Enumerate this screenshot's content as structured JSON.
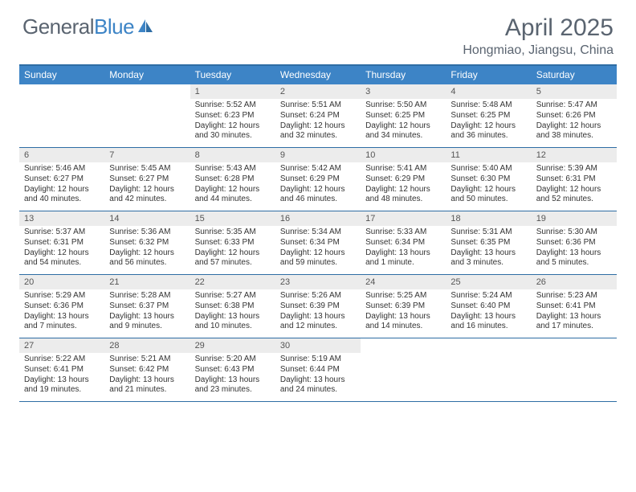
{
  "logo": {
    "general": "General",
    "blue": "Blue"
  },
  "title": "April 2025",
  "location": "Hongmiao, Jiangsu, China",
  "colors": {
    "header_bg": "#3d84c6",
    "border": "#2e6da4",
    "daynum_bg": "#ececec",
    "text": "#5a6470"
  },
  "dayHeaders": [
    "Sunday",
    "Monday",
    "Tuesday",
    "Wednesday",
    "Thursday",
    "Friday",
    "Saturday"
  ],
  "weeks": [
    [
      {
        "n": "",
        "sr": "",
        "ss": "",
        "dl": ""
      },
      {
        "n": "",
        "sr": "",
        "ss": "",
        "dl": ""
      },
      {
        "n": "1",
        "sr": "5:52 AM",
        "ss": "6:23 PM",
        "dl": "12 hours and 30 minutes."
      },
      {
        "n": "2",
        "sr": "5:51 AM",
        "ss": "6:24 PM",
        "dl": "12 hours and 32 minutes."
      },
      {
        "n": "3",
        "sr": "5:50 AM",
        "ss": "6:25 PM",
        "dl": "12 hours and 34 minutes."
      },
      {
        "n": "4",
        "sr": "5:48 AM",
        "ss": "6:25 PM",
        "dl": "12 hours and 36 minutes."
      },
      {
        "n": "5",
        "sr": "5:47 AM",
        "ss": "6:26 PM",
        "dl": "12 hours and 38 minutes."
      }
    ],
    [
      {
        "n": "6",
        "sr": "5:46 AM",
        "ss": "6:27 PM",
        "dl": "12 hours and 40 minutes."
      },
      {
        "n": "7",
        "sr": "5:45 AM",
        "ss": "6:27 PM",
        "dl": "12 hours and 42 minutes."
      },
      {
        "n": "8",
        "sr": "5:43 AM",
        "ss": "6:28 PM",
        "dl": "12 hours and 44 minutes."
      },
      {
        "n": "9",
        "sr": "5:42 AM",
        "ss": "6:29 PM",
        "dl": "12 hours and 46 minutes."
      },
      {
        "n": "10",
        "sr": "5:41 AM",
        "ss": "6:29 PM",
        "dl": "12 hours and 48 minutes."
      },
      {
        "n": "11",
        "sr": "5:40 AM",
        "ss": "6:30 PM",
        "dl": "12 hours and 50 minutes."
      },
      {
        "n": "12",
        "sr": "5:39 AM",
        "ss": "6:31 PM",
        "dl": "12 hours and 52 minutes."
      }
    ],
    [
      {
        "n": "13",
        "sr": "5:37 AM",
        "ss": "6:31 PM",
        "dl": "12 hours and 54 minutes."
      },
      {
        "n": "14",
        "sr": "5:36 AM",
        "ss": "6:32 PM",
        "dl": "12 hours and 56 minutes."
      },
      {
        "n": "15",
        "sr": "5:35 AM",
        "ss": "6:33 PM",
        "dl": "12 hours and 57 minutes."
      },
      {
        "n": "16",
        "sr": "5:34 AM",
        "ss": "6:34 PM",
        "dl": "12 hours and 59 minutes."
      },
      {
        "n": "17",
        "sr": "5:33 AM",
        "ss": "6:34 PM",
        "dl": "13 hours and 1 minute."
      },
      {
        "n": "18",
        "sr": "5:31 AM",
        "ss": "6:35 PM",
        "dl": "13 hours and 3 minutes."
      },
      {
        "n": "19",
        "sr": "5:30 AM",
        "ss": "6:36 PM",
        "dl": "13 hours and 5 minutes."
      }
    ],
    [
      {
        "n": "20",
        "sr": "5:29 AM",
        "ss": "6:36 PM",
        "dl": "13 hours and 7 minutes."
      },
      {
        "n": "21",
        "sr": "5:28 AM",
        "ss": "6:37 PM",
        "dl": "13 hours and 9 minutes."
      },
      {
        "n": "22",
        "sr": "5:27 AM",
        "ss": "6:38 PM",
        "dl": "13 hours and 10 minutes."
      },
      {
        "n": "23",
        "sr": "5:26 AM",
        "ss": "6:39 PM",
        "dl": "13 hours and 12 minutes."
      },
      {
        "n": "24",
        "sr": "5:25 AM",
        "ss": "6:39 PM",
        "dl": "13 hours and 14 minutes."
      },
      {
        "n": "25",
        "sr": "5:24 AM",
        "ss": "6:40 PM",
        "dl": "13 hours and 16 minutes."
      },
      {
        "n": "26",
        "sr": "5:23 AM",
        "ss": "6:41 PM",
        "dl": "13 hours and 17 minutes."
      }
    ],
    [
      {
        "n": "27",
        "sr": "5:22 AM",
        "ss": "6:41 PM",
        "dl": "13 hours and 19 minutes."
      },
      {
        "n": "28",
        "sr": "5:21 AM",
        "ss": "6:42 PM",
        "dl": "13 hours and 21 minutes."
      },
      {
        "n": "29",
        "sr": "5:20 AM",
        "ss": "6:43 PM",
        "dl": "13 hours and 23 minutes."
      },
      {
        "n": "30",
        "sr": "5:19 AM",
        "ss": "6:44 PM",
        "dl": "13 hours and 24 minutes."
      },
      {
        "n": "",
        "sr": "",
        "ss": "",
        "dl": ""
      },
      {
        "n": "",
        "sr": "",
        "ss": "",
        "dl": ""
      },
      {
        "n": "",
        "sr": "",
        "ss": "",
        "dl": ""
      }
    ]
  ],
  "labels": {
    "sunrise": "Sunrise: ",
    "sunset": "Sunset: ",
    "daylight": "Daylight: "
  }
}
